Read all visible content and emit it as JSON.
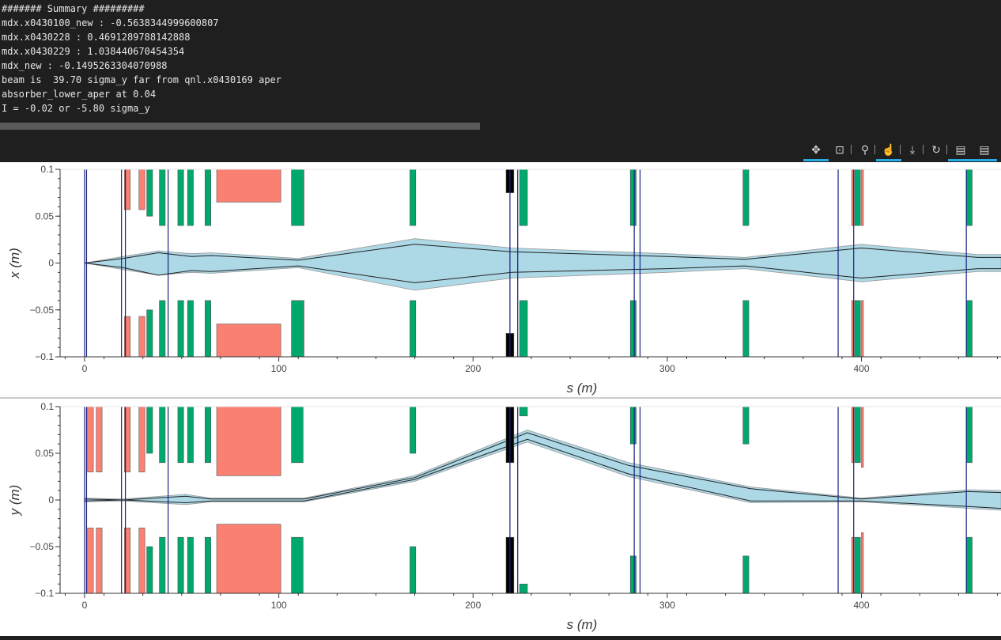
{
  "console": {
    "lines": [
      "####### Summary #########",
      "mdx.x0430100_new : -0.5638344999600807",
      "mdx.x0430228 : 0.4691289788142888",
      "mdx.x0430229 : 1.038440670454354",
      "mdx_new : -0.1495263304070988",
      "beam is  39.70 sigma_y far from qnl.x0430169 aper",
      "absorber_lower_aper at 0.04",
      "I = -0.02 or -5.80 sigma_y"
    ]
  },
  "toolbar": {
    "tools": [
      {
        "name": "pan-tool",
        "icon": "pan-icon",
        "glyph": "✥",
        "active": true
      },
      {
        "name": "box-zoom-tool",
        "icon": "box-zoom-icon",
        "glyph": "⊡",
        "active": false
      },
      {
        "name": "wheel-zoom-tool",
        "icon": "wheel-zoom-icon",
        "glyph": "⚲",
        "active": false
      },
      {
        "name": "tap-tool",
        "icon": "tap-icon",
        "glyph": "☝",
        "active": true
      },
      {
        "name": "save-tool",
        "icon": "save-icon",
        "glyph": "⤓",
        "active": false
      },
      {
        "name": "reset-tool",
        "icon": "reset-icon",
        "glyph": "↻",
        "active": false
      },
      {
        "name": "hover-tool-1",
        "icon": "hover-icon",
        "glyph": "▤",
        "active": true
      },
      {
        "name": "hover-tool-2",
        "icon": "hover-icon",
        "glyph": "▤",
        "active": true
      }
    ]
  },
  "chart_data": [
    {
      "type": "area",
      "ylabel": "x (m)",
      "xlabel": "s (m)",
      "xlim": [
        -13,
        472
      ],
      "ylim": [
        -0.1,
        0.1
      ],
      "xticks": [
        0,
        100,
        200,
        300,
        400
      ],
      "xtick_labels": [
        "0",
        "100",
        "200",
        "300",
        "400"
      ],
      "yticks": [
        -0.1,
        -0.05,
        0,
        0.05,
        0.1
      ],
      "ytick_labels": [
        "−0.1",
        "−0.05",
        "0",
        "0.05",
        "0.1"
      ],
      "envelope_outer": {
        "s": [
          0,
          20,
          38,
          55,
          65,
          110,
          170,
          220,
          300,
          340,
          400,
          460,
          472
        ],
        "upper": [
          0.0,
          0.007,
          0.013,
          0.01,
          0.011,
          0.005,
          0.026,
          0.016,
          0.01,
          0.006,
          0.02,
          0.009,
          0.009
        ],
        "lower": [
          0.0,
          -0.007,
          -0.013,
          -0.01,
          -0.011,
          -0.005,
          -0.029,
          -0.016,
          -0.01,
          -0.006,
          -0.02,
          -0.009,
          -0.009
        ]
      },
      "envelope_inner": {
        "s": [
          0,
          20,
          38,
          55,
          65,
          110,
          170,
          220,
          300,
          340,
          400,
          460,
          472
        ],
        "upper": [
          0.0,
          0.005,
          0.011,
          0.007,
          0.008,
          0.003,
          0.02,
          0.012,
          0.007,
          0.004,
          0.016,
          0.006,
          0.006
        ],
        "lower": [
          0.0,
          -0.005,
          -0.013,
          -0.008,
          -0.009,
          -0.003,
          -0.021,
          -0.01,
          -0.006,
          -0.003,
          -0.016,
          -0.006,
          -0.006
        ]
      },
      "elements": [
        {
          "kind": "bend",
          "s": 20.5,
          "w": 3,
          "top": 0.1,
          "inner": 0.057
        },
        {
          "kind": "bend",
          "s": 28,
          "w": 3,
          "top": 0.1,
          "inner": 0.057
        },
        {
          "kind": "bend",
          "s": 68,
          "w": 33,
          "top": 0.1,
          "inner": 0.065
        },
        {
          "kind": "bend",
          "s": 112,
          "w": 1,
          "top": 0.1,
          "inner": 0.04
        },
        {
          "kind": "bend",
          "s": 395,
          "w": 1,
          "top": 0.1,
          "inner": 0.04
        },
        {
          "kind": "bend",
          "s": 400,
          "w": 1,
          "top": 0.1,
          "inner": 0.04
        },
        {
          "kind": "quad",
          "s": 32,
          "w": 3,
          "top": 0.1,
          "inner": 0.05
        },
        {
          "kind": "quad",
          "s": 38.5,
          "w": 3,
          "top": 0.1,
          "inner": 0.04
        },
        {
          "kind": "quad",
          "s": 48,
          "w": 3,
          "top": 0.1,
          "inner": 0.04
        },
        {
          "kind": "quad",
          "s": 53,
          "w": 3,
          "top": 0.1,
          "inner": 0.04
        },
        {
          "kind": "quad",
          "s": 62,
          "w": 3,
          "top": 0.1,
          "inner": 0.04
        },
        {
          "kind": "quad",
          "s": 106.5,
          "w": 6,
          "top": 0.1,
          "inner": 0.04
        },
        {
          "kind": "quad",
          "s": 167.5,
          "w": 3,
          "top": 0.1,
          "inner": 0.04
        },
        {
          "kind": "quad",
          "s": 224,
          "w": 4,
          "top": 0.1,
          "inner": 0.04
        },
        {
          "kind": "quad",
          "s": 281,
          "w": 3,
          "top": 0.1,
          "inner": 0.04
        },
        {
          "kind": "quad",
          "s": 339,
          "w": 3,
          "top": 0.1,
          "inner": 0.04
        },
        {
          "kind": "quad",
          "s": 396.5,
          "w": 3,
          "top": 0.1,
          "inner": 0.04
        },
        {
          "kind": "quad",
          "s": 454,
          "w": 3,
          "top": 0.1,
          "inner": 0.04
        },
        {
          "kind": "collimator",
          "s": 217,
          "w": 4,
          "top": 0.1,
          "inner": 0.075
        }
      ],
      "markers": [
        0,
        1,
        19,
        21,
        43,
        219,
        223,
        283,
        286,
        388,
        396,
        454
      ]
    },
    {
      "type": "area",
      "ylabel": "y (m)",
      "xlabel": "s (m)",
      "xlim": [
        -13,
        472
      ],
      "ylim": [
        -0.1,
        0.1
      ],
      "xticks": [
        0,
        100,
        200,
        300,
        400
      ],
      "xtick_labels": [
        "0",
        "100",
        "200",
        "300",
        "400"
      ],
      "yticks": [
        -0.1,
        -0.05,
        0,
        0.05,
        0.1
      ],
      "ytick_labels": [
        "−0.1",
        "−0.05",
        "0",
        "0.05",
        "0.1"
      ],
      "envelope_outer": {
        "s": [
          0,
          20,
          52,
          65,
          113,
          170,
          228,
          280,
          343,
          400,
          455,
          472
        ],
        "upper": [
          0.002,
          0.001,
          0.006,
          0.002,
          0.002,
          0.026,
          0.075,
          0.04,
          0.014,
          0.002,
          0.011,
          0.01
        ],
        "lower": [
          -0.002,
          -0.001,
          -0.005,
          -0.002,
          -0.002,
          0.02,
          0.062,
          0.025,
          -0.003,
          -0.002,
          -0.009,
          -0.011
        ]
      },
      "envelope_inner": {
        "s": [
          0,
          20,
          52,
          65,
          113,
          170,
          228,
          280,
          343,
          400,
          455,
          472
        ],
        "upper": [
          0.001,
          0.0,
          0.004,
          0.001,
          0.001,
          0.024,
          0.072,
          0.037,
          0.012,
          0.001,
          0.009,
          0.008
        ],
        "lower": [
          -0.001,
          0.0,
          -0.003,
          -0.001,
          -0.001,
          0.022,
          0.065,
          0.028,
          -0.001,
          -0.001,
          -0.007,
          -0.009
        ]
      },
      "elements": [
        {
          "kind": "bend",
          "s": 1.5,
          "w": 3,
          "top": 0.1,
          "inner": 0.03
        },
        {
          "kind": "bend",
          "s": 6,
          "w": 3,
          "top": 0.1,
          "inner": 0.03
        },
        {
          "kind": "bend",
          "s": 20.5,
          "w": 3,
          "top": 0.1,
          "inner": 0.03
        },
        {
          "kind": "bend",
          "s": 28,
          "w": 3,
          "top": 0.1,
          "inner": 0.03
        },
        {
          "kind": "bend",
          "s": 68,
          "w": 33,
          "top": 0.1,
          "inner": 0.026
        },
        {
          "kind": "bend",
          "s": 395,
          "w": 1,
          "top": 0.1,
          "inner": 0.04
        },
        {
          "kind": "bend",
          "s": 400,
          "w": 1,
          "top": 0.1,
          "inner": 0.035
        },
        {
          "kind": "quad",
          "s": 32,
          "w": 3,
          "top": 0.1,
          "inner": 0.05
        },
        {
          "kind": "quad",
          "s": 38.5,
          "w": 3,
          "top": 0.1,
          "inner": 0.04
        },
        {
          "kind": "quad",
          "s": 48,
          "w": 3,
          "top": 0.1,
          "inner": 0.04
        },
        {
          "kind": "quad",
          "s": 53,
          "w": 3,
          "top": 0.1,
          "inner": 0.04
        },
        {
          "kind": "quad",
          "s": 62,
          "w": 3,
          "top": 0.1,
          "inner": 0.04
        },
        {
          "kind": "quad",
          "s": 106.5,
          "w": 6,
          "top": 0.1,
          "inner": 0.04
        },
        {
          "kind": "quad",
          "s": 167.5,
          "w": 3,
          "top": 0.1,
          "inner": 0.05
        },
        {
          "kind": "quad",
          "s": 224,
          "w": 4,
          "top": 0.1,
          "inner": 0.09
        },
        {
          "kind": "quad",
          "s": 281,
          "w": 3,
          "top": 0.1,
          "inner": 0.06
        },
        {
          "kind": "quad",
          "s": 339,
          "w": 3,
          "top": 0.1,
          "inner": 0.06
        },
        {
          "kind": "quad",
          "s": 396.5,
          "w": 3,
          "top": 0.1,
          "inner": 0.04
        },
        {
          "kind": "quad",
          "s": 454,
          "w": 3,
          "top": 0.1,
          "inner": 0.04
        },
        {
          "kind": "collimator",
          "s": 217,
          "w": 4,
          "top": 0.1,
          "inner": 0.04
        }
      ],
      "markers": [
        0,
        1,
        19,
        21,
        43,
        219,
        223,
        283,
        286,
        388,
        396,
        454
      ]
    }
  ],
  "colors": {
    "envelope_fill": "#add8e6",
    "envelope_line": "#222222",
    "envelope_outer_line": "#999999",
    "bend": "#fa8072",
    "quad": "#00a86b",
    "collimator": "#000000",
    "marker": "#1a237e"
  }
}
